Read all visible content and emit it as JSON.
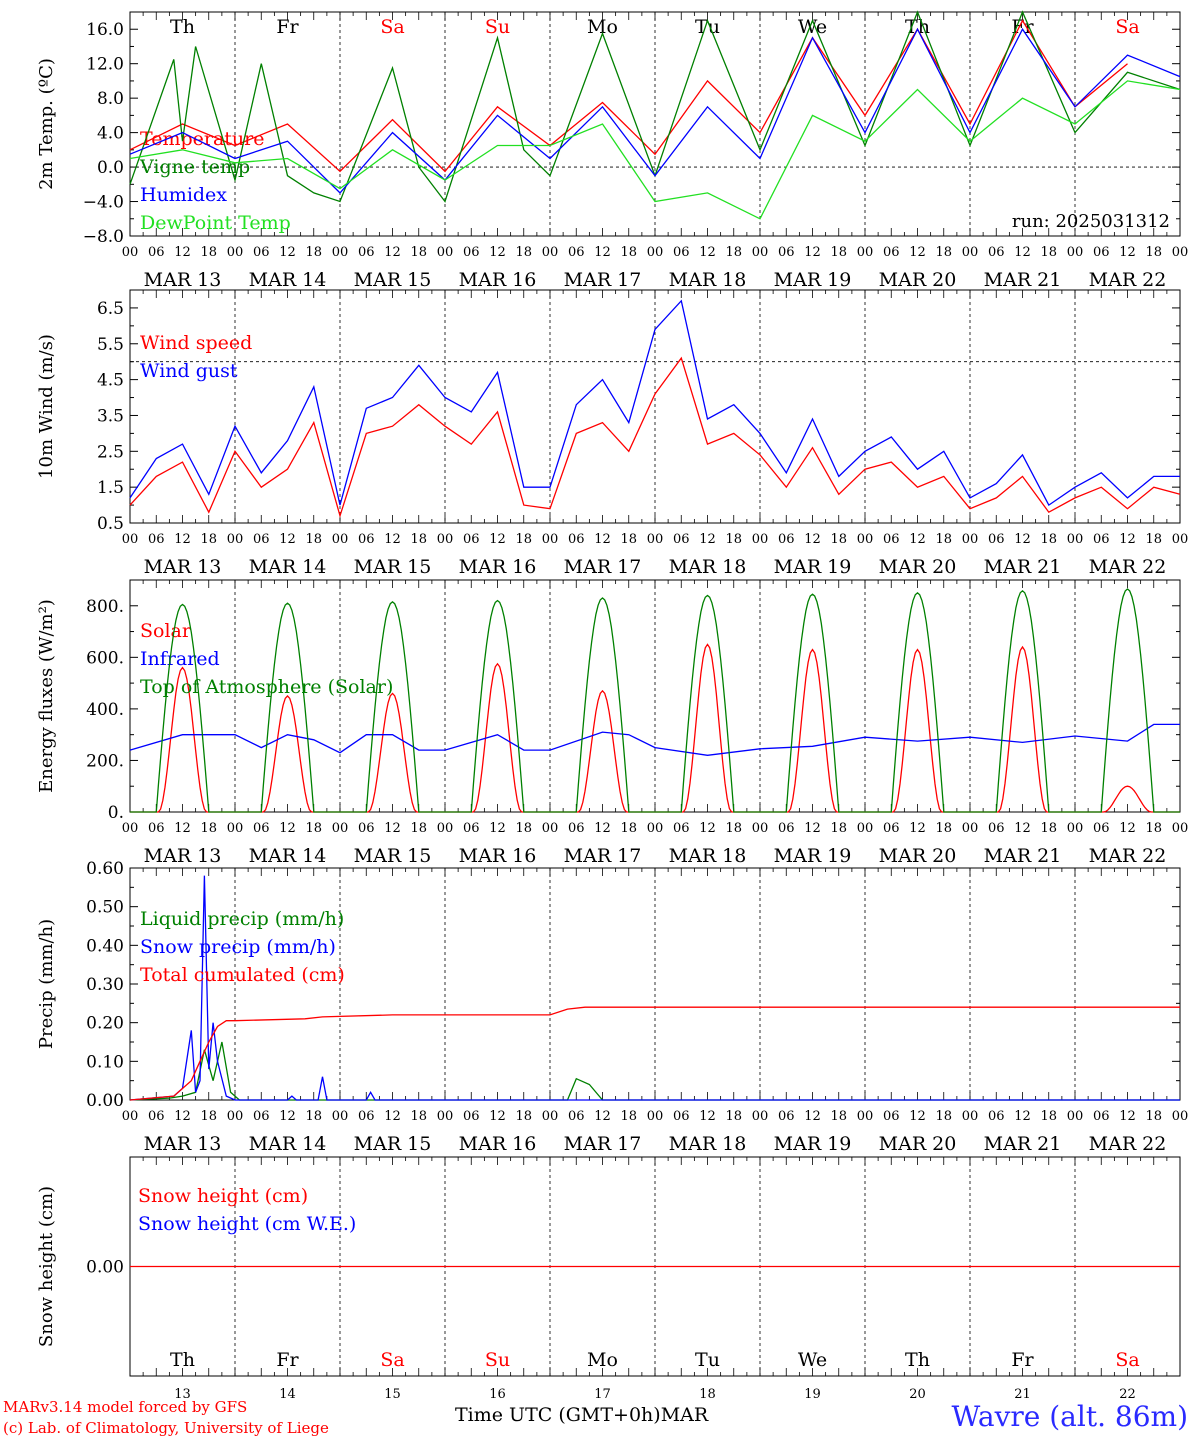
{
  "colors": {
    "red": "#ff0000",
    "blue": "#0000ff",
    "green": "#008000",
    "lightgreen": "#22e022",
    "weekend": "#ff0000",
    "axis": "#000000"
  },
  "timeline": {
    "days": [
      "Th",
      "Fr",
      "Sa",
      "Su",
      "Mo",
      "Tu",
      "We",
      "Th",
      "Fr",
      "Sa"
    ],
    "weekend_day_indices": [
      2,
      3,
      9
    ],
    "dates": [
      "MAR 13",
      "MAR 14",
      "MAR 15",
      "MAR 16",
      "MAR 17",
      "MAR 18",
      "MAR 19",
      "MAR 20",
      "MAR 21",
      "MAR 22"
    ],
    "hour_labels": [
      "00",
      "06",
      "12",
      "18"
    ],
    "last_hour_label": "00",
    "day_numbers": [
      "13",
      "14",
      "15",
      "16",
      "17",
      "18",
      "19",
      "20",
      "21",
      "22"
    ]
  },
  "footer": {
    "credit_line1": "MARv3.14 model forced by GFS",
    "credit_line2": "(c) Lab. of Climatology, University of Liege",
    "xaxis_title": "Time UTC (GMT+0h)",
    "month": "MAR",
    "station": "Wavre (alt. 86m)"
  },
  "chart_data": [
    {
      "id": "temp",
      "type": "line",
      "ylabel": "2m Temp. (ºC)",
      "ylim": [
        -8,
        18
      ],
      "yticks": [
        -8,
        -4,
        0,
        4,
        8,
        12,
        16
      ],
      "tick_labels": [
        "−8.0",
        "−4.0",
        "0.0",
        "4.0",
        "8.0",
        "12.0",
        "16.0"
      ],
      "ref_line": 0,
      "annotation": "run: 2025031312",
      "series": [
        {
          "name": "Temperature",
          "color": "red",
          "x": [
            0,
            12,
            24,
            36,
            48,
            60,
            72,
            84,
            96,
            108,
            120,
            132,
            144,
            156,
            168,
            180,
            192,
            204,
            216,
            228
          ],
          "values": [
            2.0,
            5.0,
            2.5,
            5.0,
            -0.5,
            5.5,
            -0.5,
            7.0,
            2.5,
            7.5,
            1.5,
            10.0,
            4.0,
            15.0,
            6.0,
            16.0,
            5.0,
            17.0,
            7.0,
            12.0
          ]
        },
        {
          "name": "Vigne temp",
          "color": "green",
          "x": [
            0,
            10,
            12,
            15,
            24,
            30,
            36,
            42,
            48,
            60,
            66,
            72,
            84,
            90,
            96,
            108,
            120,
            132,
            144,
            156,
            168,
            180,
            192,
            204,
            216,
            228,
            240
          ],
          "values": [
            -2.0,
            12.5,
            3.0,
            14.0,
            -1.5,
            12.0,
            -1.0,
            -3.0,
            -4.0,
            11.5,
            0.0,
            -4.0,
            15.0,
            2.0,
            -1.0,
            15.5,
            -1.0,
            17.0,
            2.0,
            17.0,
            2.5,
            18.0,
            2.5,
            18.0,
            4.0,
            11.0,
            9.0
          ]
        },
        {
          "name": "Humidex",
          "color": "blue",
          "x": [
            0,
            12,
            24,
            36,
            48,
            60,
            72,
            84,
            96,
            108,
            120,
            132,
            144,
            156,
            168,
            180,
            192,
            204,
            216,
            228,
            240
          ],
          "values": [
            1.5,
            4.0,
            1.0,
            3.0,
            -3.0,
            4.0,
            -1.5,
            6.0,
            1.0,
            7.0,
            -1.0,
            7.0,
            1.0,
            15.0,
            4.0,
            16.0,
            4.0,
            16.0,
            7.0,
            13.0,
            10.5
          ]
        },
        {
          "name": "DewPoint Temp",
          "color": "lightgreen",
          "x": [
            0,
            12,
            24,
            36,
            48,
            60,
            72,
            84,
            96,
            108,
            120,
            132,
            144,
            156,
            168,
            180,
            192,
            204,
            216,
            228,
            240
          ],
          "values": [
            1.0,
            2.0,
            0.5,
            1.0,
            -2.5,
            2.0,
            -1.5,
            2.5,
            2.5,
            5.0,
            -4.0,
            -3.0,
            -6.0,
            6.0,
            3.0,
            9.0,
            3.0,
            8.0,
            5.0,
            10.0,
            9.0
          ]
        }
      ]
    },
    {
      "id": "wind",
      "type": "line",
      "ylabel": "10m Wind (m/s)",
      "ylim": [
        0.5,
        7.0
      ],
      "yticks": [
        0.5,
        1.5,
        2.5,
        3.5,
        4.5,
        5.5,
        6.5
      ],
      "tick_labels": [
        "0.5",
        "1.5",
        "2.5",
        "3.5",
        "4.5",
        "5.5",
        "6.5"
      ],
      "ref_line": 5.0,
      "series": [
        {
          "name": "Wind speed",
          "color": "red",
          "x": [
            0,
            6,
            12,
            18,
            24,
            30,
            36,
            42,
            48,
            54,
            60,
            66,
            72,
            78,
            84,
            90,
            96,
            102,
            108,
            114,
            120,
            126,
            132,
            138,
            144,
            150,
            156,
            162,
            168,
            174,
            180,
            186,
            192,
            198,
            204,
            210,
            216,
            222,
            228,
            234,
            240
          ],
          "values": [
            1.0,
            1.8,
            2.2,
            0.8,
            2.5,
            1.5,
            2.0,
            3.3,
            0.7,
            3.0,
            3.2,
            3.8,
            3.2,
            2.7,
            3.6,
            1.0,
            0.9,
            3.0,
            3.3,
            2.5,
            4.1,
            5.1,
            2.7,
            3.0,
            2.4,
            1.5,
            2.6,
            1.3,
            2.0,
            2.2,
            1.5,
            1.8,
            0.9,
            1.2,
            1.8,
            0.8,
            1.2,
            1.5,
            0.9,
            1.5,
            1.3
          ]
        },
        {
          "name": "Wind gust",
          "color": "blue",
          "x": [
            0,
            6,
            12,
            18,
            24,
            30,
            36,
            42,
            48,
            54,
            60,
            66,
            72,
            78,
            84,
            90,
            96,
            102,
            108,
            114,
            120,
            126,
            132,
            138,
            144,
            150,
            156,
            162,
            168,
            174,
            180,
            186,
            192,
            198,
            204,
            210,
            216,
            222,
            228,
            234,
            240
          ],
          "values": [
            1.2,
            2.3,
            2.7,
            1.3,
            3.2,
            1.9,
            2.8,
            4.3,
            1.0,
            3.7,
            4.0,
            4.9,
            4.0,
            3.6,
            4.7,
            1.5,
            1.5,
            3.8,
            4.5,
            3.3,
            5.9,
            6.7,
            3.4,
            3.8,
            3.0,
            1.9,
            3.4,
            1.8,
            2.5,
            2.9,
            2.0,
            2.5,
            1.2,
            1.6,
            2.4,
            1.0,
            1.5,
            1.9,
            1.2,
            1.8,
            1.8
          ]
        }
      ]
    },
    {
      "id": "energy",
      "type": "line",
      "ylabel": "Energy fluxes (W/m²)",
      "ylim": [
        0,
        900
      ],
      "yticks": [
        0,
        200,
        400,
        600,
        800
      ],
      "tick_labels": [
        "0.",
        "200.",
        "400.",
        "600.",
        "800."
      ],
      "solar_peaks": [
        560,
        450,
        460,
        575,
        470,
        650,
        630,
        630,
        640,
        100
      ],
      "toa_peaks": [
        805,
        810,
        815,
        820,
        830,
        840,
        845,
        850,
        858,
        865
      ],
      "series": [
        {
          "name": "Solar",
          "color": "red"
        },
        {
          "name": "Infrared",
          "color": "blue",
          "x": [
            0,
            12,
            24,
            30,
            36,
            42,
            48,
            54,
            60,
            66,
            72,
            84,
            90,
            96,
            108,
            114,
            120,
            132,
            144,
            156,
            168,
            180,
            192,
            204,
            216,
            228,
            234,
            240
          ],
          "values": [
            240,
            300,
            300,
            250,
            300,
            280,
            230,
            300,
            300,
            240,
            240,
            300,
            240,
            240,
            310,
            300,
            250,
            220,
            245,
            255,
            290,
            275,
            290,
            270,
            295,
            275,
            340,
            340
          ]
        },
        {
          "name": "Top of Atmosphere (Solar)",
          "color": "green"
        }
      ]
    },
    {
      "id": "precip",
      "type": "line",
      "ylabel": "Precip (mm/h)",
      "ylim": [
        0,
        0.6
      ],
      "yticks": [
        0,
        0.1,
        0.2,
        0.3,
        0.4,
        0.5,
        0.6
      ],
      "tick_labels": [
        "0.00",
        "0.10",
        "0.20",
        "0.30",
        "0.40",
        "0.50",
        "0.60"
      ],
      "series": [
        {
          "name": "Liquid precip (mm/h)",
          "color": "green",
          "x": [
            0,
            9,
            12,
            15,
            17,
            19,
            21,
            23,
            25,
            100,
            102,
            105,
            108,
            240
          ],
          "values": [
            0,
            0.005,
            0.01,
            0.02,
            0.13,
            0.05,
            0.15,
            0.02,
            0,
            0,
            0.055,
            0.04,
            0,
            0
          ]
        },
        {
          "name": "Snow precip (mm/h)",
          "color": "blue",
          "x": [
            0,
            10,
            12,
            14,
            15,
            16,
            17,
            18,
            19,
            20,
            22,
            24,
            36,
            37,
            38,
            43,
            44,
            45,
            54,
            55,
            56,
            240
          ],
          "values": [
            0,
            0.01,
            0.03,
            0.18,
            0.02,
            0.05,
            0.58,
            0.08,
            0.2,
            0.1,
            0.01,
            0,
            0,
            0.01,
            0,
            0,
            0.06,
            0,
            0,
            0.02,
            0,
            0
          ]
        },
        {
          "name": "Total cumulated (cm)",
          "color": "red",
          "x": [
            0,
            10,
            14,
            16,
            18,
            20,
            22,
            24,
            40,
            44,
            60,
            96,
            100,
            104,
            240
          ],
          "values": [
            0,
            0.01,
            0.05,
            0.1,
            0.15,
            0.19,
            0.205,
            0.205,
            0.21,
            0.215,
            0.22,
            0.22,
            0.235,
            0.24,
            0.24
          ]
        }
      ]
    },
    {
      "id": "snow",
      "type": "line",
      "ylabel": "Snow height (cm)",
      "ylim": [
        -1,
        1
      ],
      "yticks": [
        0
      ],
      "tick_labels": [
        "0.00"
      ],
      "series": [
        {
          "name": "Snow height (cm)",
          "color": "red",
          "x": [
            0,
            240
          ],
          "values": [
            0,
            0
          ]
        },
        {
          "name": "Snow height (cm W.E.)",
          "color": "blue"
        }
      ]
    }
  ]
}
